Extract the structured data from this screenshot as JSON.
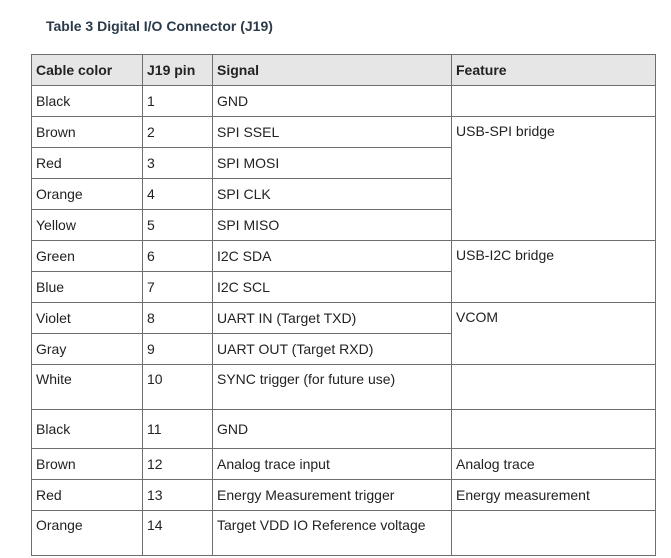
{
  "caption": "Table 3 Digital I/O Connector (J19)",
  "headers": [
    "Cable color",
    "J19 pin",
    "Signal",
    "Feature"
  ],
  "rows": [
    {
      "color": "Black",
      "pin": "1",
      "signal": "GND"
    },
    {
      "color": "Brown",
      "pin": "2",
      "signal": "SPI SSEL"
    },
    {
      "color": "Red",
      "pin": "3",
      "signal": "SPI MOSI"
    },
    {
      "color": "Orange",
      "pin": "4",
      "signal": "SPI CLK"
    },
    {
      "color": "Yellow",
      "pin": "5",
      "signal": "SPI MISO"
    },
    {
      "color": "Green",
      "pin": "6",
      "signal": "I2C SDA"
    },
    {
      "color": "Blue",
      "pin": "7",
      "signal": "I2C SCL"
    },
    {
      "color": "Violet",
      "pin": "8",
      "signal": "UART IN (Target TXD)"
    },
    {
      "color": "Gray",
      "pin": "9",
      "signal": "UART OUT (Target RXD)"
    },
    {
      "color": "White",
      "pin": "10",
      "signal": "SYNC trigger (for future use)"
    },
    {
      "color": "Black",
      "pin": "11",
      "signal": "GND"
    },
    {
      "color": "Brown",
      "pin": "12",
      "signal": "Analog trace input"
    },
    {
      "color": "Red",
      "pin": "13",
      "signal": "Energy Measurement trigger"
    },
    {
      "color": "Orange",
      "pin": "14",
      "signal": "Target VDD IO Reference voltage"
    }
  ],
  "features": {
    "pin1": "",
    "spi": "USB-SPI bridge",
    "i2c": "USB-I2C bridge",
    "uart": "VCOM",
    "sync": "",
    "gnd": "",
    "analog": "Analog trace",
    "energy": "Energy measurement",
    "vdd": ""
  }
}
